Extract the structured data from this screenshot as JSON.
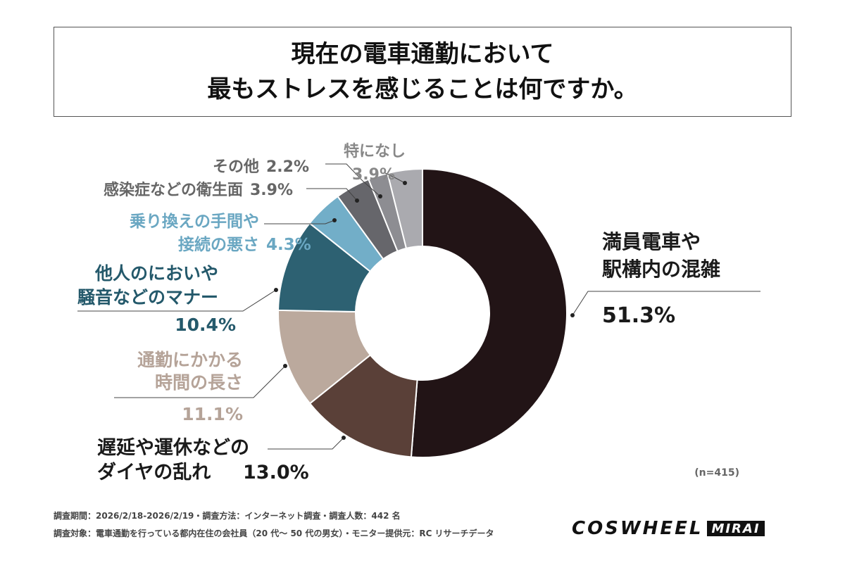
{
  "title": {
    "line1": "現在の電車通勤において",
    "line2": "最もストレスを感じることは何ですか。"
  },
  "chart_data": {
    "type": "pie",
    "donut": true,
    "start": "top, clockwise",
    "slices": [
      {
        "label_lines": [
          "満員電車や",
          "駅構内の混雑"
        ],
        "value": 51.3,
        "value_label": "51.3%",
        "color": "#221416",
        "text_color": "#1a1a1a"
      },
      {
        "label_lines": [
          "遅延や運休などの",
          "ダイヤの乱れ"
        ],
        "value": 13.0,
        "value_label": "13.0%",
        "color": "#5a4038",
        "text_color": "#1a1a1a"
      },
      {
        "label_lines": [
          "通勤にかかる",
          "時間の長さ"
        ],
        "value": 11.1,
        "value_label": "11.1%",
        "color": "#bba99d",
        "text_color": "#b5a398"
      },
      {
        "label_lines": [
          "他人のにおいや",
          "騒音などのマナー"
        ],
        "value": 10.4,
        "value_label": "10.4%",
        "color": "#2d6172",
        "text_color": "#24596b"
      },
      {
        "label_lines": [
          "乗り換えの手間や",
          "接続の悪さ"
        ],
        "value": 4.3,
        "value_label": "4.3%",
        "color": "#72aec8",
        "text_color": "#6aa7c2"
      },
      {
        "label_lines": [
          "感染症などの衛生面"
        ],
        "value": 3.9,
        "value_label": "3.9%",
        "color": "#66666b",
        "text_color": "#666"
      },
      {
        "label_lines": [
          "その他"
        ],
        "value": 2.2,
        "value_label": "2.2%",
        "color": "#8d8d92",
        "text_color": "#666"
      },
      {
        "label_lines": [
          "特になし"
        ],
        "value": 3.9,
        "value_label": "3.9%",
        "color": "#aaaaaf",
        "text_color": "#888"
      }
    ],
    "sample_size": "(n=415)"
  },
  "footer": {
    "line1": "調査期間：2026/2/18-2026/2/19・調査方法：インターネット調査・調査人数：442 名",
    "line2": "調査対象：電車通勤を行っている都内在住の会社員（20 代～ 50 代の男女）・モニター提供元：RC リサーチデータ"
  },
  "logo": {
    "main": "COSWHEEL",
    "sub": "MIRAI"
  }
}
